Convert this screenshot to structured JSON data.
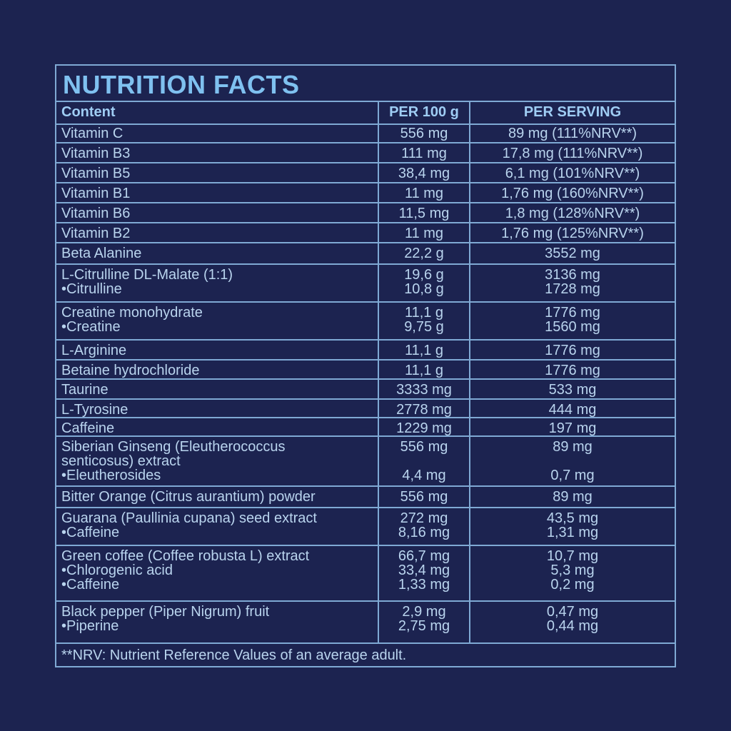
{
  "title": "NUTRITION FACTS",
  "headers": {
    "content": "Content",
    "per100": "PER 100 g",
    "serving": "PER SERVING"
  },
  "rows": [
    {
      "content": [
        "Vitamin C"
      ],
      "per100": [
        "556 mg"
      ],
      "serving": [
        "89 mg (111%NRV**)"
      ]
    },
    {
      "content": [
        "Vitamin B3"
      ],
      "per100": [
        "111 mg"
      ],
      "serving": [
        "17,8 mg (111%NRV**)"
      ]
    },
    {
      "content": [
        "Vitamin B5"
      ],
      "per100": [
        "38,4 mg"
      ],
      "serving": [
        "6,1 mg (101%NRV**)"
      ]
    },
    {
      "content": [
        "Vitamin B1"
      ],
      "per100": [
        "11 mg"
      ],
      "serving": [
        "1,76 mg (160%NRV**)"
      ]
    },
    {
      "content": [
        "Vitamin B6"
      ],
      "per100": [
        "11,5 mg"
      ],
      "serving": [
        "1,8 mg (128%NRV**)"
      ]
    },
    {
      "content": [
        "Vitamin B2"
      ],
      "per100": [
        "11 mg"
      ],
      "serving": [
        "1,76 mg (125%NRV**)"
      ]
    },
    {
      "content": [
        "Beta Alanine"
      ],
      "per100": [
        "22,2 g"
      ],
      "serving": [
        "3552 mg"
      ]
    },
    {
      "content": [
        "L-Citrulline DL-Malate (1:1)",
        "•Citrulline"
      ],
      "per100": [
        "19,6 g",
        "10,8 g"
      ],
      "serving": [
        "3136 mg",
        "1728 mg"
      ]
    },
    {
      "content": [
        "Creatine monohydrate",
        "•Creatine"
      ],
      "per100": [
        "11,1 g",
        "9,75 g"
      ],
      "serving": [
        "1776 mg",
        "1560 mg"
      ]
    },
    {
      "content": [
        "L-Arginine"
      ],
      "per100": [
        "11,1 g"
      ],
      "serving": [
        "1776 mg"
      ]
    },
    {
      "content": [
        "Betaine hydrochloride"
      ],
      "per100": [
        "11,1 g"
      ],
      "serving": [
        "1776 mg"
      ]
    },
    {
      "content": [
        "Taurine"
      ],
      "per100": [
        "3333 mg"
      ],
      "serving": [
        "533 mg"
      ]
    },
    {
      "content": [
        "L-Tyrosine"
      ],
      "per100": [
        "2778 mg"
      ],
      "serving": [
        "444 mg"
      ]
    },
    {
      "content": [
        "Caffeine"
      ],
      "per100": [
        "1229 mg"
      ],
      "serving": [
        "197 mg"
      ]
    },
    {
      "content": [
        "Siberian Ginseng (Eleutherococcus",
        "senticosus) extract",
        "•Eleutherosides"
      ],
      "per100": [
        "556 mg",
        "",
        "4,4 mg"
      ],
      "serving": [
        "89 mg",
        "",
        "0,7 mg"
      ]
    },
    {
      "content": [
        "Bitter Orange (Citrus aurantium) powder"
      ],
      "per100": [
        "556 mg"
      ],
      "serving": [
        "89 mg"
      ]
    },
    {
      "content": [
        "Guarana (Paullinia cupana) seed extract",
        "•Caffeine"
      ],
      "per100": [
        "272 mg",
        "8,16 mg"
      ],
      "serving": [
        "43,5 mg",
        "1,31 mg"
      ]
    },
    {
      "content": [
        "Green coffee (Coffee robusta L) extract",
        "•Chlorogenic acid",
        "•Caffeine"
      ],
      "per100": [
        "66,7 mg",
        "33,4 mg",
        "1,33 mg"
      ],
      "serving": [
        "10,7 mg",
        "5,3 mg",
        "0,2 mg"
      ]
    },
    {
      "content": [
        "Black pepper (Piper Nigrum) fruit",
        "•Piperine"
      ],
      "per100": [
        "2,9 mg",
        "2,75 mg"
      ],
      "serving": [
        "0,47 mg",
        "0,44 mg"
      ]
    }
  ],
  "footnote": "**NRV: Nutrient Reference Values of an average adult."
}
